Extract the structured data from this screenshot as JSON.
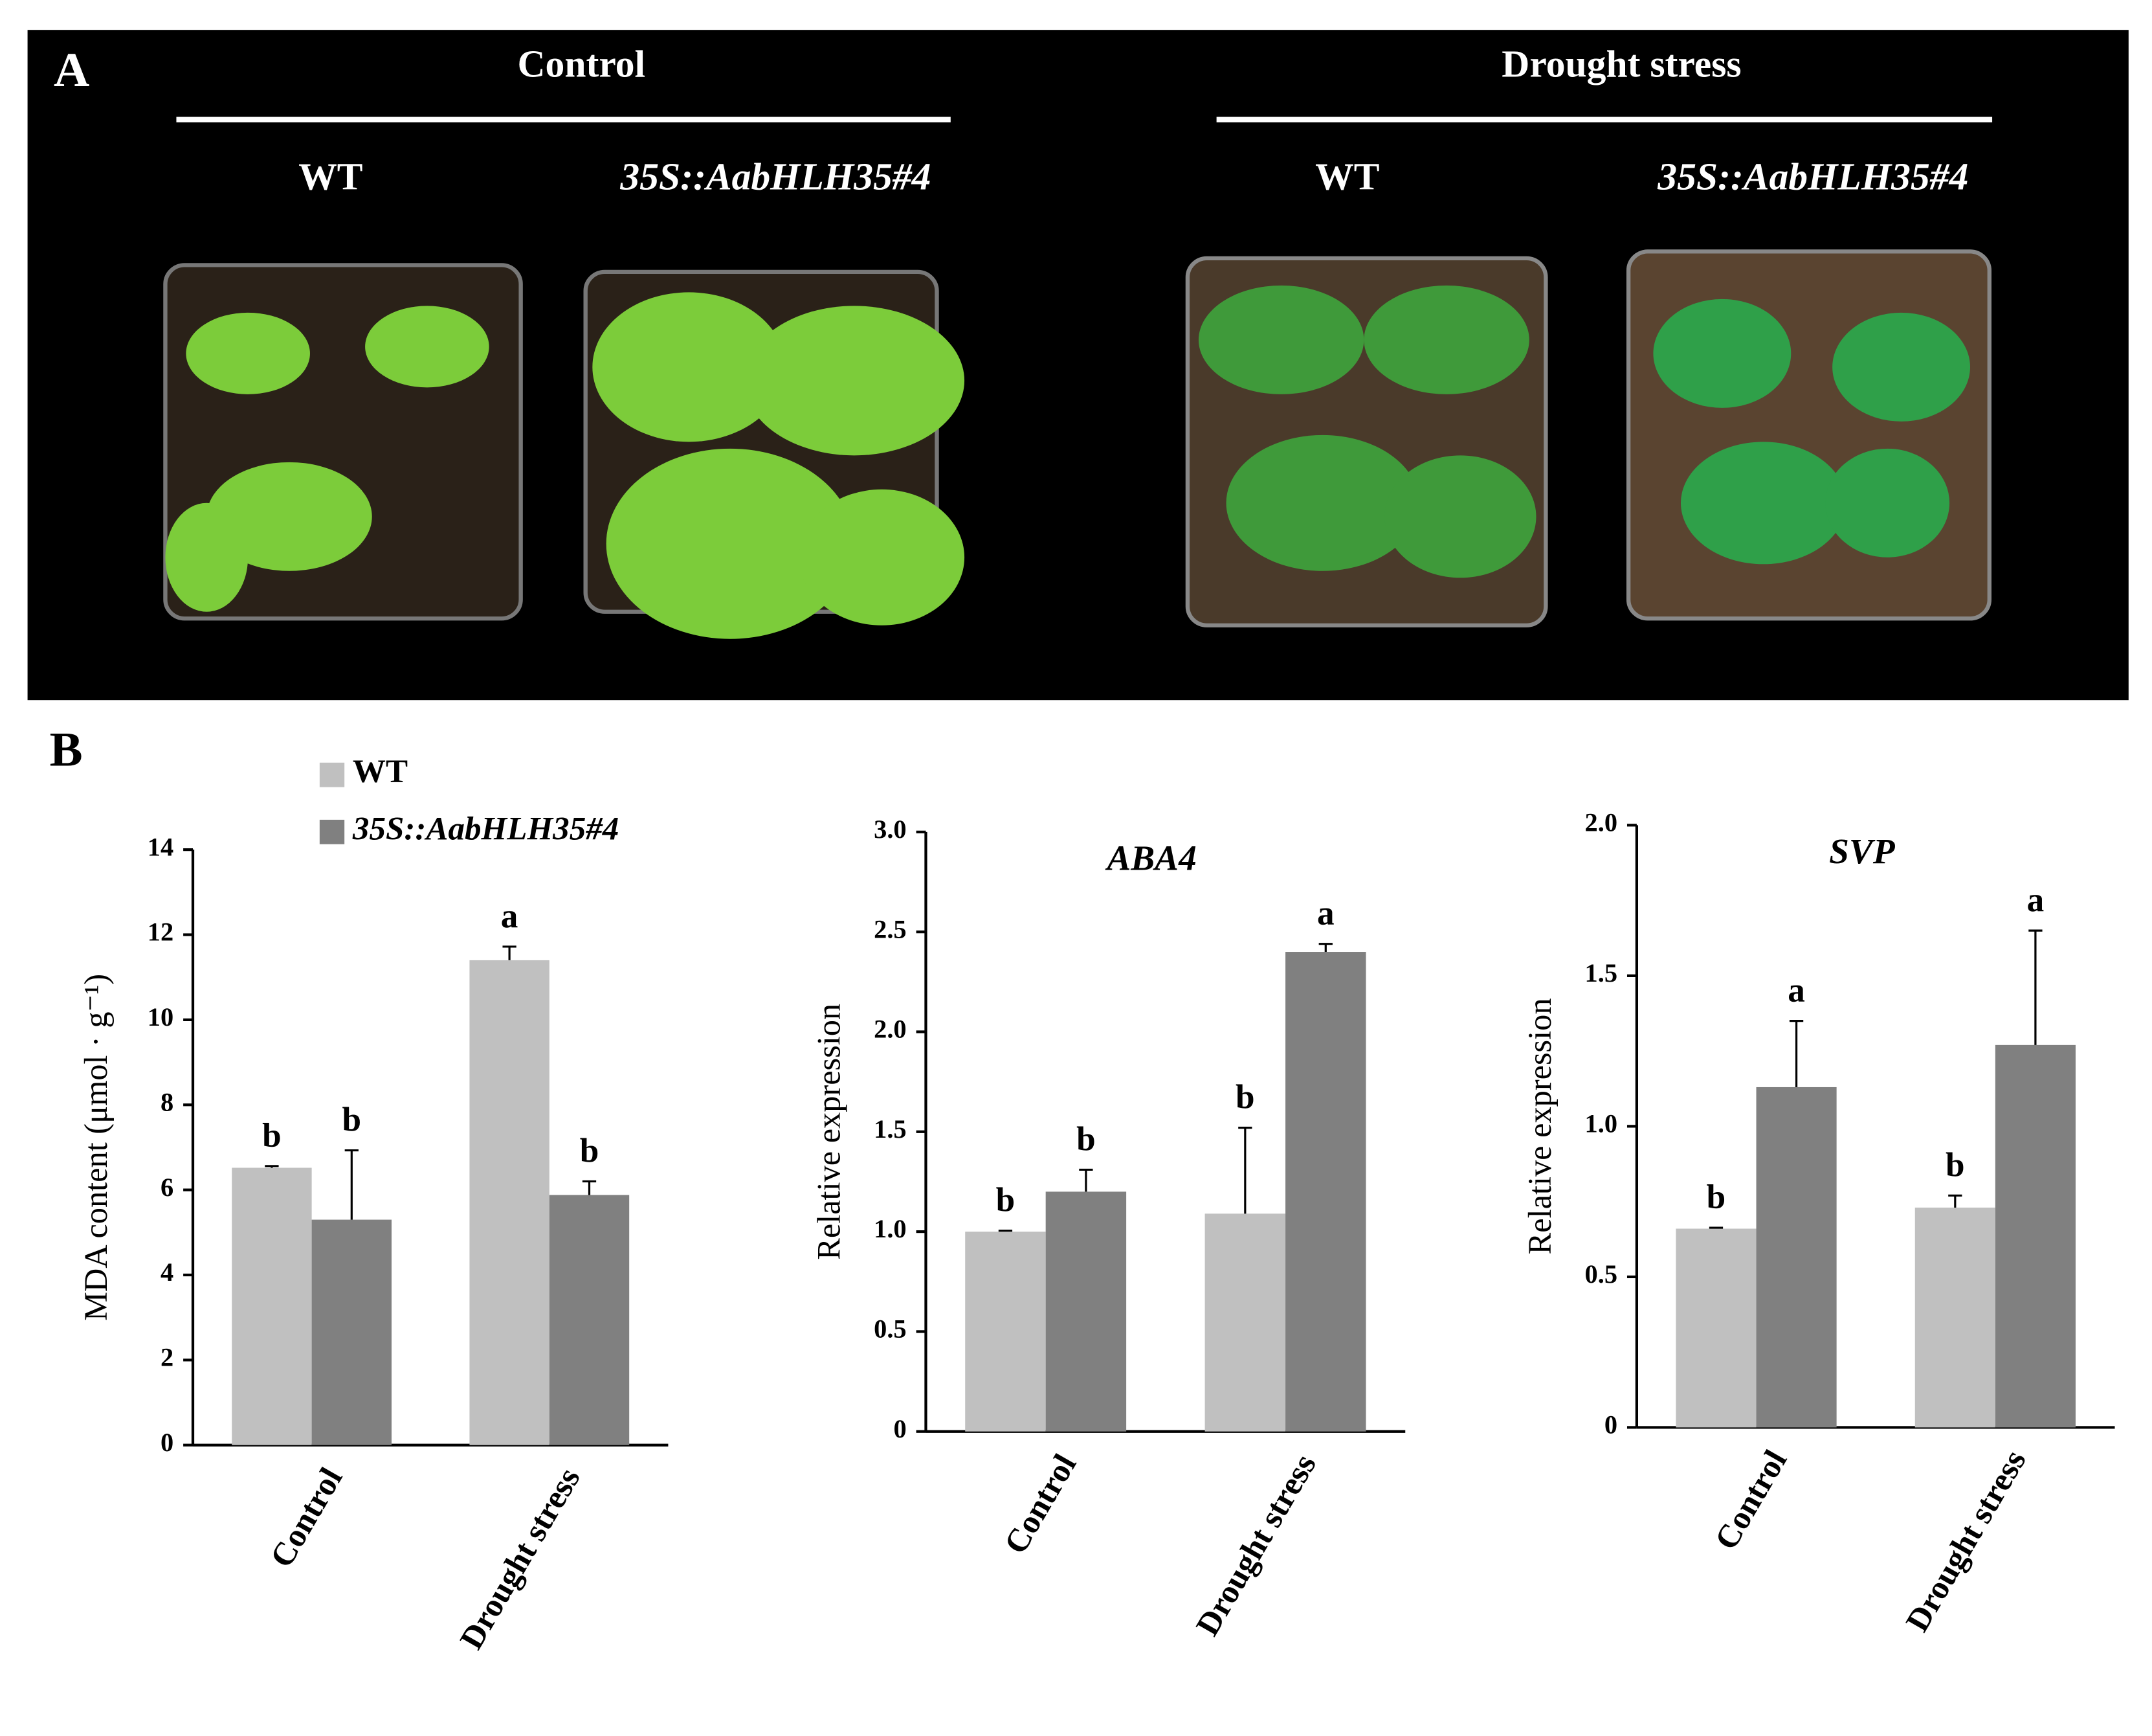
{
  "panel_a": {
    "label": "A",
    "groups": [
      {
        "title": "Control",
        "columns": [
          "WT",
          "35S::AabHLH35#4"
        ]
      },
      {
        "title": "Drought stress",
        "columns": [
          "WT",
          "35S::AabHLH35#4"
        ]
      }
    ]
  },
  "panel_b": {
    "label": "B"
  },
  "chart_data": [
    {
      "type": "bar",
      "ylabel": "MDA content (μmol · g⁻¹)",
      "categories": [
        "Control",
        "Drought stress"
      ],
      "ylim": [
        0,
        14
      ],
      "yticks": [
        0,
        2,
        4,
        6,
        8,
        10,
        12,
        14
      ],
      "legend": true,
      "series": [
        {
          "name": "WT",
          "color": "#c0c0c0",
          "values": [
            6.52,
            11.4
          ],
          "errors": [
            0.04,
            0.32
          ],
          "letters": [
            "b",
            "a"
          ]
        },
        {
          "name": "35S::AabHLH35#4",
          "color": "#808080",
          "values": [
            5.3,
            5.88
          ],
          "errors": [
            1.63,
            0.32
          ],
          "letters": [
            "b",
            "b"
          ]
        }
      ]
    },
    {
      "type": "bar",
      "title": "ABA4",
      "ylabel": "Relative expression",
      "categories": [
        "Control",
        "Drought stress"
      ],
      "ylim": [
        0,
        3
      ],
      "yticks": [
        0,
        0.5,
        {
          "value": 1,
          "label": "1.0"
        },
        1.5,
        {
          "value": 2,
          "label": "2.0"
        },
        2.5,
        {
          "value": 3,
          "label": "3.0"
        }
      ],
      "legend": false,
      "series": [
        {
          "color": "#c0c0c0",
          "values": [
            1.0,
            1.09
          ],
          "errors": [
            0.005,
            0.43
          ],
          "letters": [
            "b",
            "b"
          ]
        },
        {
          "color": "#808080",
          "values": [
            1.2,
            2.4
          ],
          "errors": [
            0.11,
            0.04
          ],
          "letters": [
            "b",
            "a"
          ]
        }
      ]
    },
    {
      "type": "bar",
      "title": "SVP",
      "ylabel": "Relative expression",
      "categories": [
        "Control",
        "Drought stress"
      ],
      "ylim": [
        0,
        2
      ],
      "yticks": [
        0,
        0.5,
        {
          "value": 1,
          "label": "1.0"
        },
        1.5,
        {
          "value": 2,
          "label": "2.0"
        }
      ],
      "legend": false,
      "series": [
        {
          "color": "#c0c0c0",
          "values": [
            0.66,
            0.73
          ],
          "errors": [
            0.003,
            0.04
          ],
          "letters": [
            "b",
            "b"
          ]
        },
        {
          "color": "#808080",
          "values": [
            1.13,
            1.27
          ],
          "errors": [
            0.22,
            0.38
          ],
          "letters": [
            "a",
            "a"
          ]
        }
      ]
    }
  ]
}
